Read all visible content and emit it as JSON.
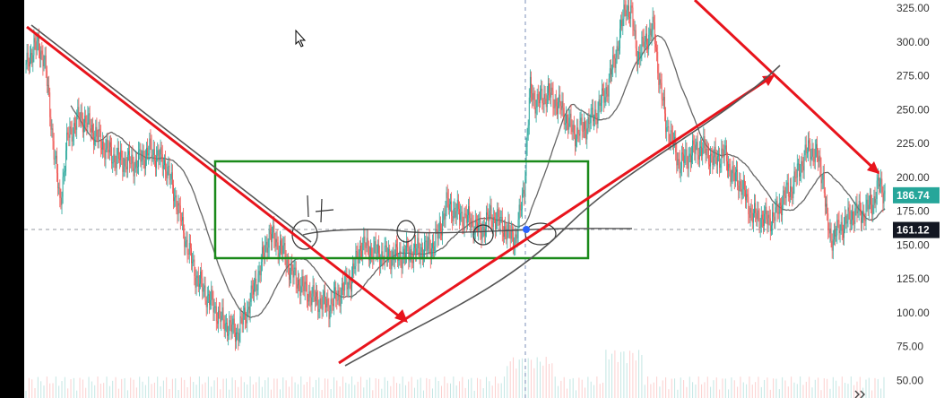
{
  "chart_data": {
    "type": "candlestick",
    "title": "",
    "xlabel": "",
    "ylabel": "",
    "ylim": [
      40,
      335
    ],
    "y_ticks": [
      325,
      300,
      275,
      250,
      225,
      200,
      175,
      150,
      125,
      100,
      75,
      50
    ],
    "y_tick_labels": [
      "325.00",
      "300.00",
      "275.00",
      "250.00",
      "225.00",
      "200.00",
      "175.00",
      "150.00",
      "125.00",
      "100.00",
      "75.00",
      "50.00"
    ],
    "price_labels": [
      {
        "text": "186.74",
        "value": 186.74,
        "color": "#26a69a"
      },
      {
        "text": "161.12",
        "value": 161.12,
        "color": "#131722"
      }
    ],
    "crosshair_price": 161.12,
    "colors": {
      "up": "#26a69a",
      "down": "#ef5350",
      "annotation": "#e8141c",
      "box": "#1a8a1a",
      "ma": "#666666"
    },
    "price_keypoints": [
      [
        0,
        280
      ],
      [
        8,
        298
      ],
      [
        18,
        290
      ],
      [
        26,
        235
      ],
      [
        34,
        180
      ],
      [
        42,
        230
      ],
      [
        54,
        245
      ],
      [
        64,
        238
      ],
      [
        76,
        225
      ],
      [
        88,
        215
      ],
      [
        98,
        212
      ],
      [
        110,
        210
      ],
      [
        124,
        220
      ],
      [
        140,
        210
      ],
      [
        150,
        185
      ],
      [
        158,
        160
      ],
      [
        170,
        128
      ],
      [
        182,
        112
      ],
      [
        196,
        95
      ],
      [
        206,
        88
      ],
      [
        212,
        85
      ],
      [
        222,
        102
      ],
      [
        232,
        125
      ],
      [
        244,
        158
      ],
      [
        256,
        148
      ],
      [
        266,
        130
      ],
      [
        278,
        118
      ],
      [
        290,
        110
      ],
      [
        304,
        105
      ],
      [
        312,
        112
      ],
      [
        326,
        125
      ],
      [
        336,
        150
      ],
      [
        346,
        146
      ],
      [
        360,
        142
      ],
      [
        376,
        142
      ],
      [
        392,
        146
      ],
      [
        406,
        148
      ],
      [
        414,
        158
      ],
      [
        422,
        180
      ],
      [
        434,
        173
      ],
      [
        446,
        168
      ],
      [
        456,
        160
      ],
      [
        466,
        172
      ],
      [
        478,
        165
      ],
      [
        484,
        158
      ],
      [
        492,
        155
      ],
      [
        500,
        195
      ],
      [
        506,
        265
      ],
      [
        512,
        255
      ],
      [
        524,
        262
      ],
      [
        538,
        250
      ],
      [
        550,
        232
      ],
      [
        562,
        238
      ],
      [
        574,
        250
      ],
      [
        584,
        268
      ],
      [
        590,
        285
      ],
      [
        596,
        305
      ],
      [
        602,
        328
      ],
      [
        608,
        318
      ],
      [
        614,
        288
      ],
      [
        622,
        302
      ],
      [
        630,
        310
      ],
      [
        636,
        270
      ],
      [
        642,
        240
      ],
      [
        648,
        228
      ],
      [
        656,
        210
      ],
      [
        664,
        215
      ],
      [
        674,
        222
      ],
      [
        682,
        220
      ],
      [
        690,
        212
      ],
      [
        700,
        218
      ],
      [
        710,
        200
      ],
      [
        718,
        195
      ],
      [
        724,
        180
      ],
      [
        730,
        172
      ],
      [
        738,
        170
      ],
      [
        744,
        168
      ],
      [
        752,
        172
      ],
      [
        760,
        185
      ],
      [
        768,
        192
      ],
      [
        778,
        210
      ],
      [
        786,
        222
      ],
      [
        794,
        215
      ],
      [
        800,
        200
      ],
      [
        804,
        165
      ],
      [
        808,
        155
      ],
      [
        816,
        162
      ],
      [
        824,
        168
      ],
      [
        832,
        175
      ],
      [
        840,
        173
      ],
      [
        850,
        182
      ],
      [
        856,
        195
      ],
      [
        862,
        188
      ]
    ]
  }
}
